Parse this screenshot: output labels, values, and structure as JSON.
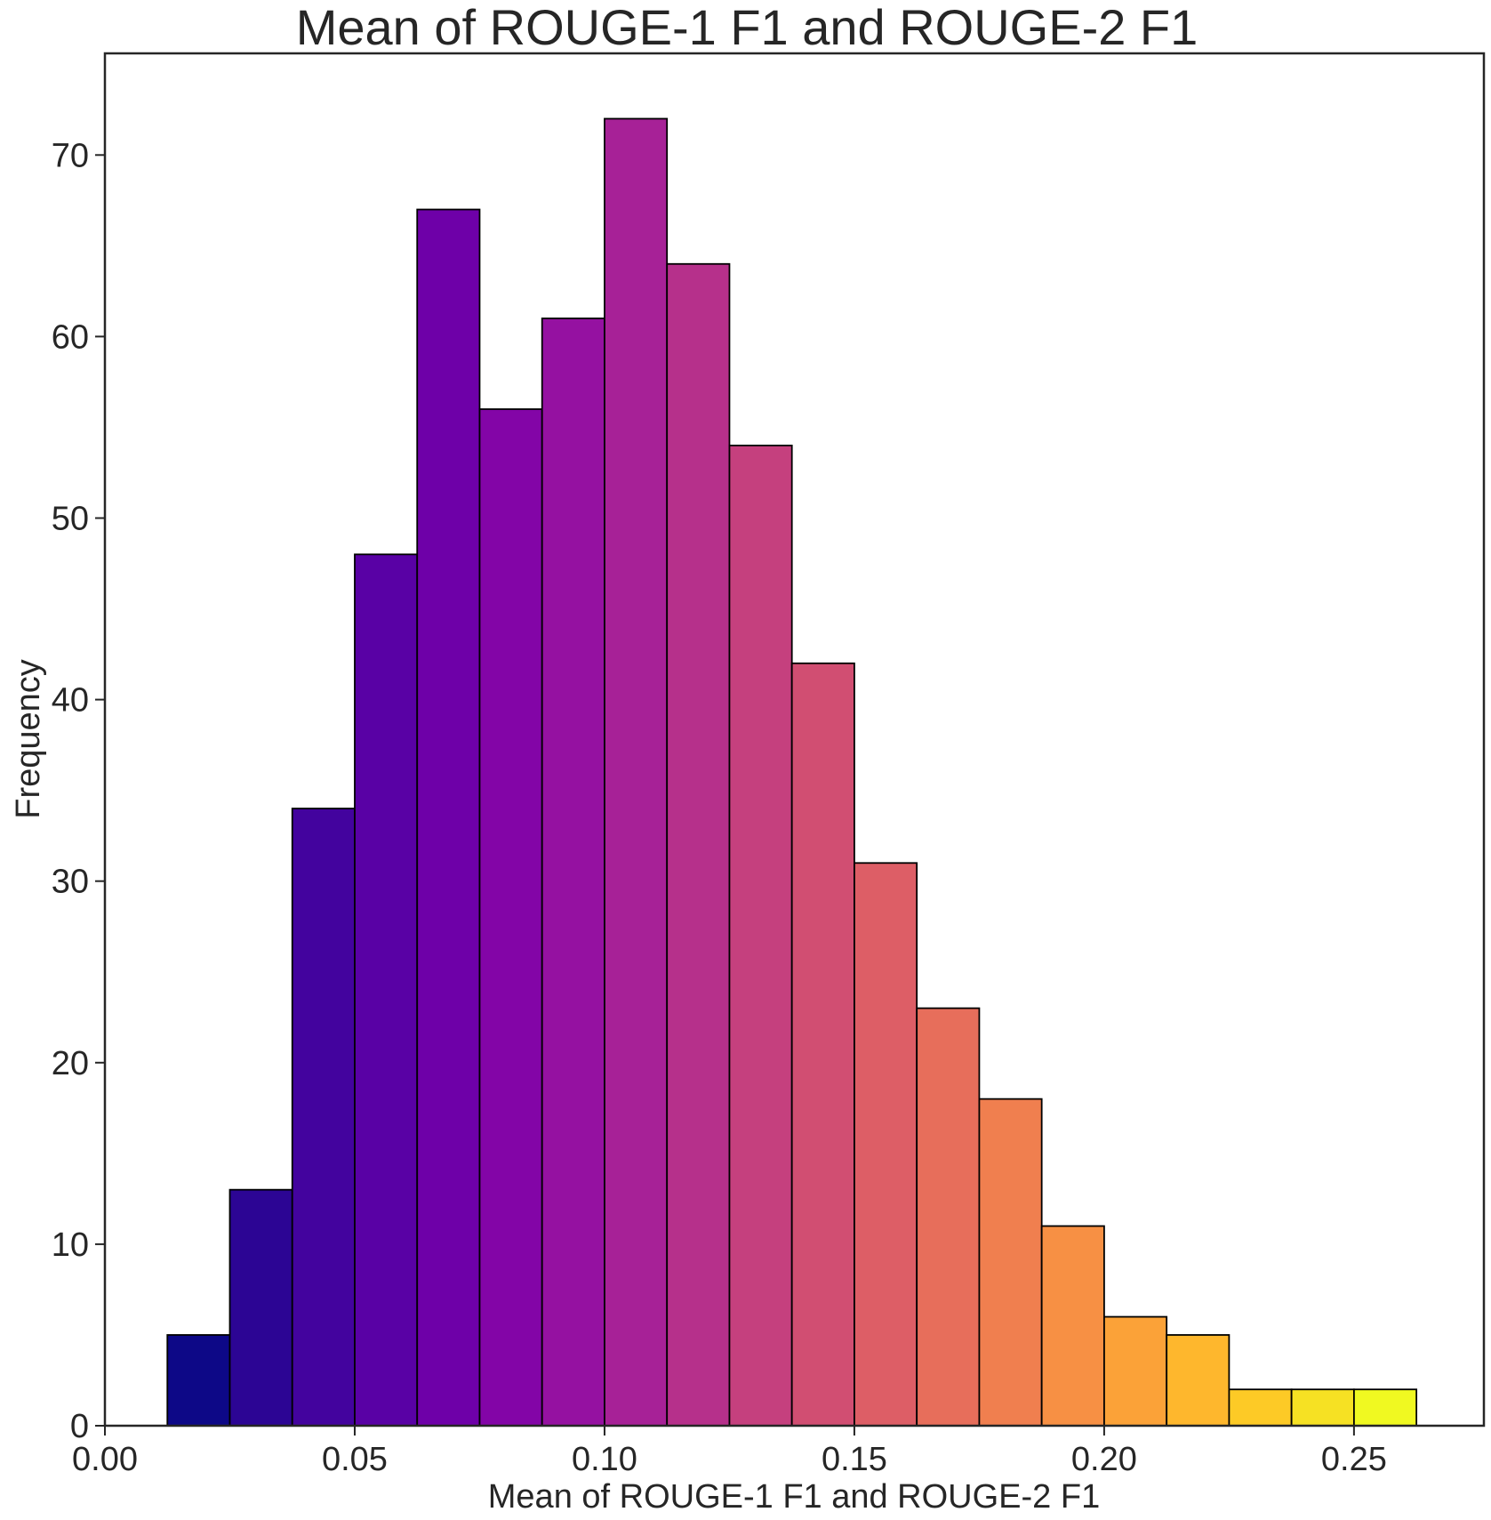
{
  "chart_data": {
    "type": "bar",
    "title": "Mean of ROUGE-1 F1 and ROUGE-2 F1",
    "xlabel": "Mean of ROUGE-1 F1 and ROUGE-2 F1",
    "ylabel": "Frequency",
    "xlim": [
      0.0,
      0.276
    ],
    "ylim": [
      0,
      75.6
    ],
    "xticks": [
      "0.00",
      "0.05",
      "0.10",
      "0.15",
      "0.20",
      "0.25"
    ],
    "xtick_values": [
      0.0,
      0.05,
      0.1,
      0.15,
      0.2,
      0.25
    ],
    "yticks": [
      "0",
      "10",
      "20",
      "30",
      "40",
      "50",
      "60",
      "70"
    ],
    "ytick_values": [
      0,
      10,
      20,
      30,
      40,
      50,
      60,
      70
    ],
    "bins": [
      {
        "x0": 0.0125,
        "x1": 0.025,
        "value": 5,
        "color": "#0d0887"
      },
      {
        "x0": 0.025,
        "x1": 0.0375,
        "value": 13,
        "color": "#2c0594"
      },
      {
        "x0": 0.0375,
        "x1": 0.05,
        "value": 34,
        "color": "#43039e"
      },
      {
        "x0": 0.05,
        "x1": 0.0625,
        "value": 48,
        "color": "#5901a5"
      },
      {
        "x0": 0.0625,
        "x1": 0.075,
        "value": 67,
        "color": "#6e00a8"
      },
      {
        "x0": 0.075,
        "x1": 0.0875,
        "value": 56,
        "color": "#8305a7"
      },
      {
        "x0": 0.0875,
        "x1": 0.1,
        "value": 61,
        "color": "#9511a1"
      },
      {
        "x0": 0.1,
        "x1": 0.1125,
        "value": 72,
        "color": "#a72197"
      },
      {
        "x0": 0.1125,
        "x1": 0.125,
        "value": 64,
        "color": "#b6308b"
      },
      {
        "x0": 0.125,
        "x1": 0.1375,
        "value": 54,
        "color": "#c5407e"
      },
      {
        "x0": 0.1375,
        "x1": 0.15,
        "value": 42,
        "color": "#d14e72"
      },
      {
        "x0": 0.15,
        "x1": 0.1625,
        "value": 31,
        "color": "#dd5e66"
      },
      {
        "x0": 0.1625,
        "x1": 0.175,
        "value": 23,
        "color": "#e76e5b"
      },
      {
        "x0": 0.175,
        "x1": 0.1875,
        "value": 18,
        "color": "#f07f4f"
      },
      {
        "x0": 0.1875,
        "x1": 0.2,
        "value": 11,
        "color": "#f79044"
      },
      {
        "x0": 0.2,
        "x1": 0.2125,
        "value": 6,
        "color": "#fba238"
      },
      {
        "x0": 0.2125,
        "x1": 0.225,
        "value": 5,
        "color": "#feb72d"
      },
      {
        "x0": 0.225,
        "x1": 0.2375,
        "value": 2,
        "color": "#fdca26"
      },
      {
        "x0": 0.2375,
        "x1": 0.25,
        "value": 2,
        "color": "#f6e123"
      },
      {
        "x0": 0.25,
        "x1": 0.2625,
        "value": 2,
        "color": "#f0f921"
      }
    ],
    "grid": false,
    "legend": "none"
  }
}
